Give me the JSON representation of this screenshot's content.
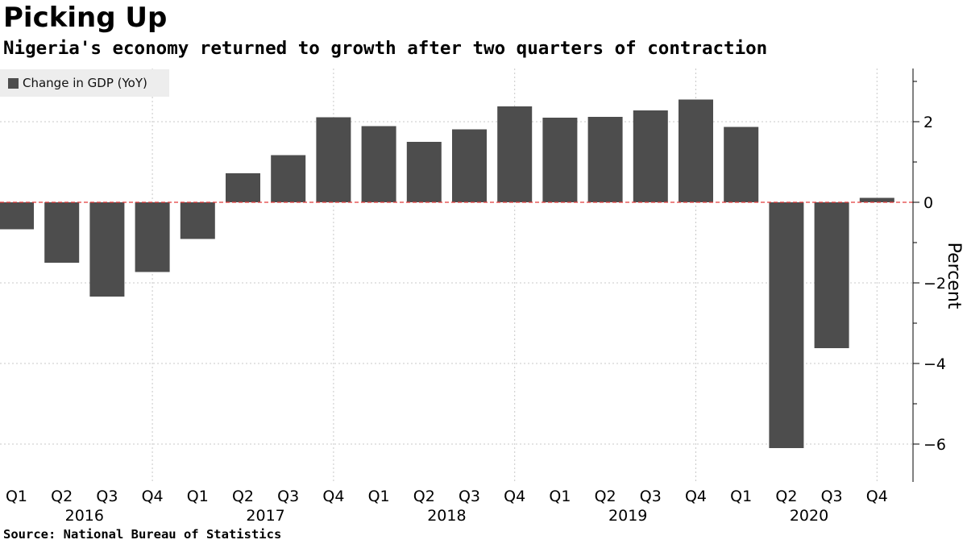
{
  "title": "Picking Up",
  "subtitle": "Nigeria's economy returned to growth after two quarters of contraction",
  "source": "Source: National Bureau of Statistics",
  "colors": {
    "bar": "#4d4d4d",
    "zero_line": "#e23a3a",
    "grid": "#c8c8c8"
  },
  "chart_data": {
    "type": "bar",
    "categories": [
      "Q1",
      "Q2",
      "Q3",
      "Q4",
      "Q1",
      "Q2",
      "Q3",
      "Q4",
      "Q1",
      "Q2",
      "Q3",
      "Q4",
      "Q1",
      "Q2",
      "Q3",
      "Q4",
      "Q1",
      "Q2",
      "Q3",
      "Q4"
    ],
    "years": [
      {
        "label": "2016",
        "start": 0,
        "end": 3
      },
      {
        "label": "2017",
        "start": 4,
        "end": 7
      },
      {
        "label": "2018",
        "start": 8,
        "end": 11
      },
      {
        "label": "2019",
        "start": 12,
        "end": 15
      },
      {
        "label": "2020",
        "start": 16,
        "end": 19
      }
    ],
    "series": [
      {
        "name": "Change in GDP (YoY)",
        "values": [
          -0.67,
          -1.5,
          -2.34,
          -1.73,
          -0.91,
          0.72,
          1.17,
          2.11,
          1.89,
          1.5,
          1.81,
          2.38,
          2.1,
          2.12,
          2.28,
          2.55,
          1.87,
          -6.1,
          -3.62,
          0.11
        ]
      }
    ],
    "ylabel": "Percent",
    "ylim": [
      -6.9,
      3.4
    ],
    "yticks": [
      2,
      0,
      -2,
      -4,
      -6
    ],
    "y_axis_side": "right",
    "grid": true,
    "legend": "top-left"
  }
}
